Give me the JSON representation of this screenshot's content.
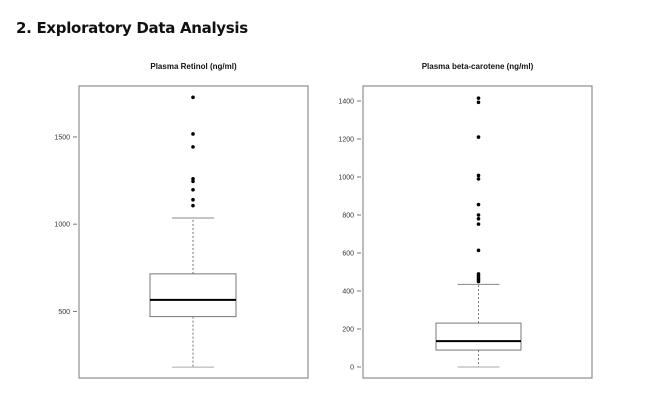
{
  "heading": "2. Exploratory Data Analysis",
  "chart_data": [
    {
      "type": "boxplot",
      "title": "Plasma Retinol (ng/ml)",
      "ylim": [
        118,
        1792
      ],
      "yticks": [
        500,
        1000,
        1500
      ],
      "ytick_labels": [
        "500",
        "1000",
        "1500"
      ],
      "stats": {
        "whisker_low": 180,
        "q1": 470,
        "median": 566,
        "q3": 715,
        "whisker_high": 1035
      },
      "outliers": [
        1106,
        1140,
        1197,
        1245,
        1260,
        1443,
        1517,
        1727
      ]
    },
    {
      "type": "boxplot",
      "title": "Plasma beta-carotene (ng/ml)",
      "ylim": [
        -58,
        1479
      ],
      "yticks": [
        0,
        200,
        400,
        600,
        800,
        1000,
        1200,
        1400
      ],
      "ytick_labels": [
        "0",
        "200",
        "400",
        "600",
        "800",
        "1000",
        "1200",
        "1400"
      ],
      "stats": {
        "whisker_low": 0,
        "q1": 89,
        "median": 136,
        "q3": 231,
        "whisker_high": 435
      },
      "outliers": [
        450,
        460,
        470,
        480,
        490,
        614,
        752,
        780,
        800,
        855,
        990,
        1008,
        1210,
        1393,
        1415
      ]
    }
  ]
}
